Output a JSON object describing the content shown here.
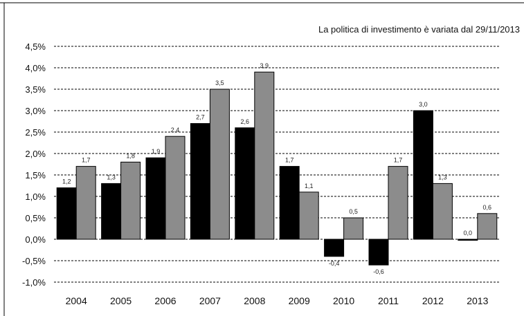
{
  "chart_data": {
    "type": "bar",
    "title": "",
    "annotation": "La politica di investimento è variata dal 29/11/2013",
    "xlabel": "",
    "ylabel": "",
    "categories": [
      "2004",
      "2005",
      "2006",
      "2007",
      "2008",
      "2009",
      "2010",
      "2011",
      "2012",
      "2013"
    ],
    "series": [
      {
        "color": "#000000",
        "values": [
          1.2,
          1.3,
          1.9,
          2.7,
          2.6,
          1.7,
          -0.4,
          -0.6,
          3.0,
          0.0
        ],
        "labels": [
          "1,2",
          "1,3",
          "1,9",
          "2,7",
          "2,6",
          "1,7",
          "-0,4",
          "-0,6",
          "3,0",
          "0,0"
        ]
      },
      {
        "color": "#8c8c8c",
        "values": [
          1.7,
          1.8,
          2.4,
          3.5,
          3.9,
          1.1,
          0.5,
          1.7,
          1.3,
          0.6
        ],
        "labels": [
          "1,7",
          "1,8",
          "2,4",
          "3,5",
          "3,9",
          "1,1",
          "0,5",
          "1,7",
          "1,3",
          "0,6"
        ]
      }
    ],
    "ylim": [
      -1.0,
      4.5
    ],
    "yticks": [
      4.5,
      4.0,
      3.5,
      3.0,
      2.5,
      2.0,
      1.5,
      1.0,
      0.5,
      0.0,
      -0.5,
      -1.0
    ],
    "ytick_labels": [
      "4,5%",
      "4,0%",
      "3,5%",
      "3,0%",
      "2,5%",
      "2,0%",
      "1,5%",
      "1,0%",
      "0,5%",
      "0,0%",
      "-0,5%",
      "-1,0%"
    ],
    "grid": "horizontal dashed",
    "legend": "none"
  }
}
